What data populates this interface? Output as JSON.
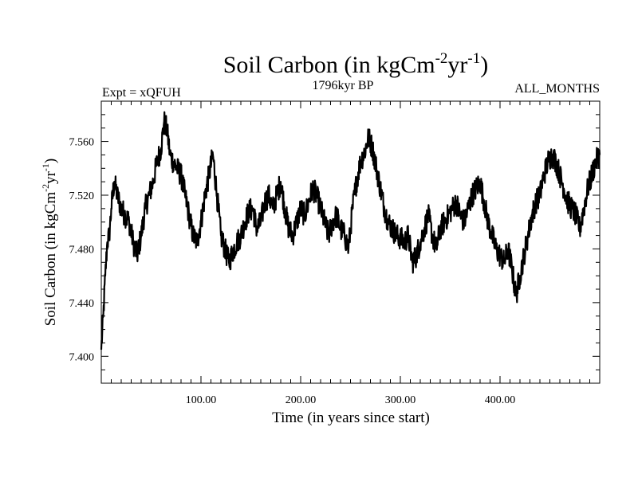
{
  "chart_data": {
    "type": "line",
    "title": {
      "main": "Soil Carbon (in kgCm",
      "sup1": "-2",
      "mid": "yr",
      "sup2": "-1",
      "end": ")"
    },
    "expt_label": "Expt = xQFUH",
    "period_label": "1796kyr BP",
    "months_label": "ALL_MONTHS",
    "xlabel": "Time (in years since start)",
    "ylabel": {
      "main": "Soil Carbon (in kgCm",
      "sup1": "-2",
      "mid": "yr",
      "sup2": "-1",
      "end": ")"
    },
    "xlim": [
      0,
      500
    ],
    "ylim": [
      7.38,
      7.59
    ],
    "x_ticks": [
      {
        "value": 100,
        "label": "100.00"
      },
      {
        "value": 200,
        "label": "200.00"
      },
      {
        "value": 300,
        "label": "300.00"
      },
      {
        "value": 400,
        "label": "400.00"
      }
    ],
    "y_ticks": [
      {
        "value": 7.4,
        "label": "7.400"
      },
      {
        "value": 7.44,
        "label": "7.440"
      },
      {
        "value": 7.48,
        "label": "7.480"
      },
      {
        "value": 7.52,
        "label": "7.520"
      },
      {
        "value": 7.56,
        "label": "7.560"
      }
    ],
    "series": [
      {
        "name": "Soil Carbon",
        "x": [
          0,
          2,
          4,
          6,
          8,
          10,
          13,
          16,
          20,
          24,
          28,
          32,
          36,
          40,
          44,
          48,
          52,
          56,
          60,
          63,
          66,
          69,
          72,
          76,
          80,
          84,
          88,
          92,
          96,
          100,
          104,
          108,
          112,
          116,
          120,
          124,
          128,
          132,
          136,
          140,
          144,
          148,
          152,
          156,
          160,
          164,
          168,
          172,
          176,
          180,
          184,
          188,
          192,
          196,
          200,
          204,
          208,
          212,
          216,
          220,
          224,
          228,
          232,
          236,
          240,
          244,
          248,
          252,
          256,
          260,
          264,
          268,
          272,
          276,
          280,
          284,
          288,
          292,
          296,
          300,
          304,
          308,
          312,
          316,
          320,
          324,
          328,
          332,
          336,
          340,
          344,
          348,
          352,
          356,
          360,
          364,
          368,
          372,
          376,
          380,
          384,
          388,
          392,
          396,
          400,
          404,
          408,
          412,
          416,
          420,
          424,
          428,
          432,
          436,
          440,
          444,
          448,
          452,
          456,
          460,
          464,
          468,
          472,
          476,
          480,
          484,
          488,
          492,
          496,
          500
        ],
        "y": [
          7.405,
          7.43,
          7.46,
          7.485,
          7.49,
          7.51,
          7.53,
          7.52,
          7.51,
          7.505,
          7.5,
          7.485,
          7.475,
          7.49,
          7.51,
          7.52,
          7.53,
          7.545,
          7.555,
          7.575,
          7.568,
          7.55,
          7.545,
          7.54,
          7.535,
          7.52,
          7.505,
          7.49,
          7.485,
          7.5,
          7.52,
          7.535,
          7.55,
          7.52,
          7.49,
          7.48,
          7.47,
          7.478,
          7.485,
          7.49,
          7.5,
          7.508,
          7.51,
          7.495,
          7.5,
          7.515,
          7.52,
          7.51,
          7.52,
          7.53,
          7.51,
          7.495,
          7.49,
          7.5,
          7.51,
          7.505,
          7.515,
          7.525,
          7.52,
          7.51,
          7.5,
          7.49,
          7.5,
          7.505,
          7.495,
          7.49,
          7.48,
          7.51,
          7.53,
          7.545,
          7.552,
          7.563,
          7.555,
          7.54,
          7.525,
          7.51,
          7.5,
          7.495,
          7.49,
          7.488,
          7.485,
          7.49,
          7.47,
          7.475,
          7.485,
          7.495,
          7.505,
          7.49,
          7.48,
          7.495,
          7.5,
          7.505,
          7.51,
          7.515,
          7.505,
          7.5,
          7.51,
          7.52,
          7.525,
          7.53,
          7.515,
          7.5,
          7.49,
          7.48,
          7.475,
          7.47,
          7.48,
          7.465,
          7.445,
          7.46,
          7.475,
          7.49,
          7.505,
          7.515,
          7.52,
          7.535,
          7.545,
          7.55,
          7.545,
          7.535,
          7.525,
          7.515,
          7.51,
          7.505,
          7.495,
          7.51,
          7.525,
          7.535,
          7.545,
          7.55
        ]
      }
    ],
    "grid": false,
    "line_color": "#000000"
  }
}
